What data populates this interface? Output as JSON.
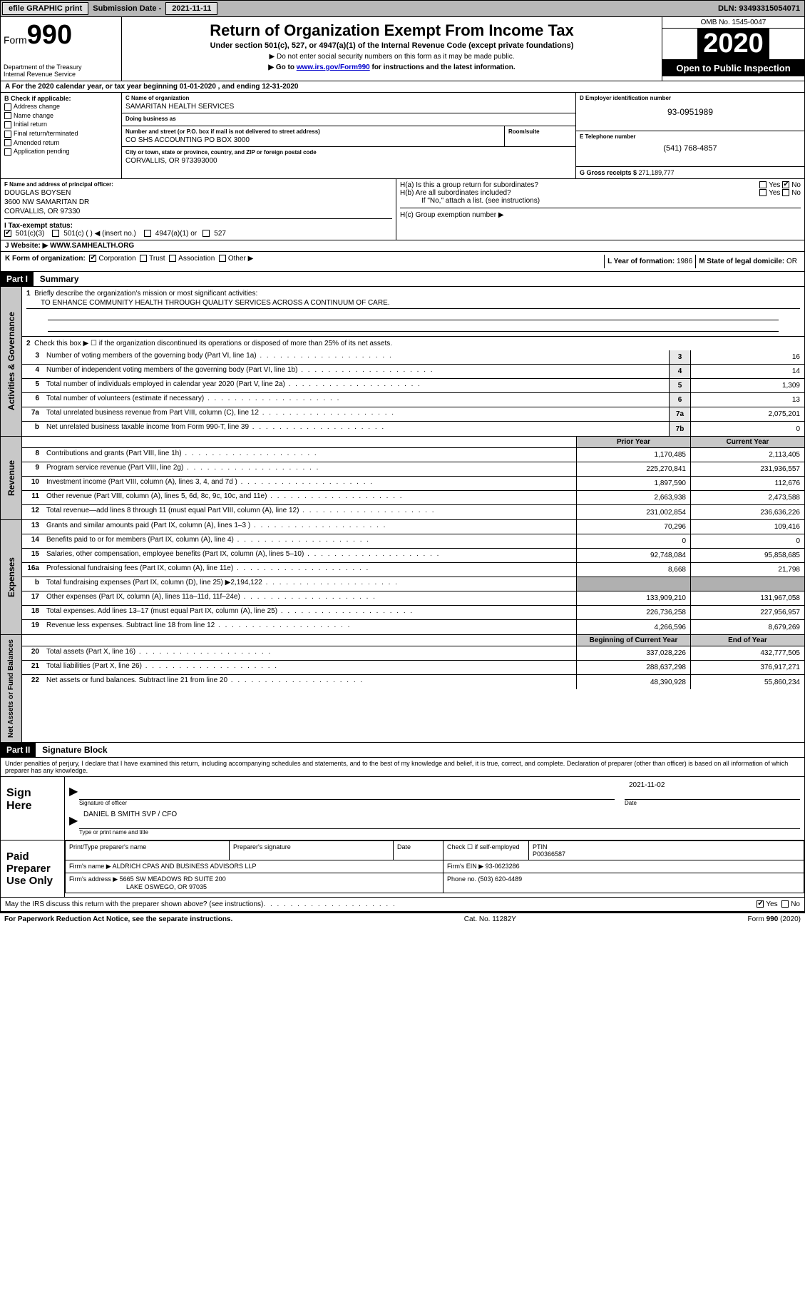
{
  "topbar": {
    "efile": "efile GRAPHIC print",
    "submission_label": "Submission Date - ",
    "submission_date": "2021-11-11",
    "dln_label": "DLN: ",
    "dln": "93493315054071"
  },
  "header": {
    "form_label": "Form",
    "form_number": "990",
    "dept": "Department of the Treasury\nInternal Revenue Service",
    "title": "Return of Organization Exempt From Income Tax",
    "subtitle": "Under section 501(c), 527, or 4947(a)(1) of the Internal Revenue Code (except private foundations)",
    "note1": "▶ Do not enter social security numbers on this form as it may be made public.",
    "note2_pre": "▶ Go to ",
    "note2_link": "www.irs.gov/Form990",
    "note2_post": " for instructions and the latest information.",
    "omb": "OMB No. 1545-0047",
    "year": "2020",
    "otp": "Open to Public Inspection"
  },
  "rowA": "A For the 2020 calendar year, or tax year beginning 01-01-2020    , and ending 12-31-2020",
  "checkboxes": {
    "header": "B Check if applicable:",
    "items": [
      "Address change",
      "Name change",
      "Initial return",
      "Final return/terminated",
      "Amended return",
      "Application pending"
    ]
  },
  "org": {
    "c_label": "C Name of organization",
    "name": "SAMARITAN HEALTH SERVICES",
    "dba_label": "Doing business as",
    "dba": "",
    "addr_label": "Number and street (or P.O. box if mail is not delivered to street address)",
    "room_label": "Room/suite",
    "addr": "CO SHS ACCOUNTING PO BOX 3000",
    "city_label": "City or town, state or province, country, and ZIP or foreign postal code",
    "city": "CORVALLIS, OR  973393000"
  },
  "right_info": {
    "d_label": "D Employer identification number",
    "ein": "93-0951989",
    "e_label": "E Telephone number",
    "phone": "(541) 768-4857",
    "g_label": "G Gross receipts $ ",
    "gross": "271,189,777"
  },
  "officer": {
    "f_label": "F  Name and address of principal officer:",
    "name": "DOUGLAS BOYSEN",
    "addr1": "3600 NW SAMARITAN DR",
    "addr2": "CORVALLIS, OR  97330"
  },
  "h_section": {
    "ha": "H(a)  Is this a group return for subordinates?",
    "hb": "H(b)  Are all subordinates included?",
    "hb_note": "If \"No,\" attach a list. (see instructions)",
    "hc": "H(c)  Group exemption number ▶"
  },
  "tax_exempt": {
    "label": "I  Tax-exempt status:",
    "opt1": "501(c)(3)",
    "opt2": "501(c) (  ) ◀ (insert no.)",
    "opt3": "4947(a)(1) or",
    "opt4": "527"
  },
  "website": {
    "label": "J  Website: ▶ ",
    "url": "WWW.SAMHEALTH.ORG"
  },
  "k_row": {
    "label": "K Form of organization:",
    "opts": [
      "Corporation",
      "Trust",
      "Association",
      "Other ▶"
    ],
    "l_label": "L Year of formation: ",
    "l_val": "1986",
    "m_label": "M State of legal domicile: ",
    "m_val": "OR"
  },
  "part1": {
    "header": "Part I",
    "title": "Summary"
  },
  "governance": {
    "vlabel": "Activities & Governance",
    "line1": "Briefly describe the organization's mission or most significant activities:",
    "mission": "TO ENHANCE COMMUNITY HEALTH THROUGH QUALITY SERVICES ACROSS A CONTINUUM OF CARE.",
    "line2": "Check this box ▶ ☐  if the organization discontinued its operations or disposed of more than 25% of its net assets.",
    "lines": [
      {
        "n": "3",
        "t": "Number of voting members of the governing body (Part VI, line 1a)",
        "box": "3",
        "v": "16"
      },
      {
        "n": "4",
        "t": "Number of independent voting members of the governing body (Part VI, line 1b)",
        "box": "4",
        "v": "14"
      },
      {
        "n": "5",
        "t": "Total number of individuals employed in calendar year 2020 (Part V, line 2a)",
        "box": "5",
        "v": "1,309"
      },
      {
        "n": "6",
        "t": "Total number of volunteers (estimate if necessary)",
        "box": "6",
        "v": "13"
      },
      {
        "n": "7a",
        "t": "Total unrelated business revenue from Part VIII, column (C), line 12",
        "box": "7a",
        "v": "2,075,201"
      },
      {
        "n": "b",
        "t": "Net unrelated business taxable income from Form 990-T, line 39",
        "box": "7b",
        "v": "0"
      }
    ]
  },
  "twoColHeader": {
    "prior": "Prior Year",
    "current": "Current Year"
  },
  "revenue": {
    "vlabel": "Revenue",
    "lines": [
      {
        "n": "8",
        "t": "Contributions and grants (Part VIII, line 1h)",
        "p": "1,170,485",
        "c": "2,113,405"
      },
      {
        "n": "9",
        "t": "Program service revenue (Part VIII, line 2g)",
        "p": "225,270,841",
        "c": "231,936,557"
      },
      {
        "n": "10",
        "t": "Investment income (Part VIII, column (A), lines 3, 4, and 7d )",
        "p": "1,897,590",
        "c": "112,676"
      },
      {
        "n": "11",
        "t": "Other revenue (Part VIII, column (A), lines 5, 6d, 8c, 9c, 10c, and 11e)",
        "p": "2,663,938",
        "c": "2,473,588"
      },
      {
        "n": "12",
        "t": "Total revenue—add lines 8 through 11 (must equal Part VIII, column (A), line 12)",
        "p": "231,002,854",
        "c": "236,636,226"
      }
    ]
  },
  "expenses": {
    "vlabel": "Expenses",
    "lines": [
      {
        "n": "13",
        "t": "Grants and similar amounts paid (Part IX, column (A), lines 1–3 )",
        "p": "70,296",
        "c": "109,416"
      },
      {
        "n": "14",
        "t": "Benefits paid to or for members (Part IX, column (A), line 4)",
        "p": "0",
        "c": "0"
      },
      {
        "n": "15",
        "t": "Salaries, other compensation, employee benefits (Part IX, column (A), lines 5–10)",
        "p": "92,748,084",
        "c": "95,858,685"
      },
      {
        "n": "16a",
        "t": "Professional fundraising fees (Part IX, column (A), line 11e)",
        "p": "8,668",
        "c": "21,798"
      },
      {
        "n": "b",
        "t": "Total fundraising expenses (Part IX, column (D), line 25) ▶2,194,122",
        "p": "SHADED",
        "c": "SHADED"
      },
      {
        "n": "17",
        "t": "Other expenses (Part IX, column (A), lines 11a–11d, 11f–24e)",
        "p": "133,909,210",
        "c": "131,967,058"
      },
      {
        "n": "18",
        "t": "Total expenses. Add lines 13–17 (must equal Part IX, column (A), line 25)",
        "p": "226,736,258",
        "c": "227,956,957"
      },
      {
        "n": "19",
        "t": "Revenue less expenses. Subtract line 18 from line 12",
        "p": "4,266,596",
        "c": "8,679,269"
      }
    ]
  },
  "netassets": {
    "vlabel": "Net Assets or Fund Balances",
    "header": {
      "prior": "Beginning of Current Year",
      "current": "End of Year"
    },
    "lines": [
      {
        "n": "20",
        "t": "Total assets (Part X, line 16)",
        "p": "337,028,226",
        "c": "432,777,505"
      },
      {
        "n": "21",
        "t": "Total liabilities (Part X, line 26)",
        "p": "288,637,298",
        "c": "376,917,271"
      },
      {
        "n": "22",
        "t": "Net assets or fund balances. Subtract line 21 from line 20",
        "p": "48,390,928",
        "c": "55,860,234"
      }
    ]
  },
  "part2": {
    "header": "Part II",
    "title": "Signature Block"
  },
  "perjury": "Under penalties of perjury, I declare that I have examined this return, including accompanying schedules and statements, and to the best of my knowledge and belief, it is true, correct, and complete. Declaration of preparer (other than officer) is based on all information of which preparer has any knowledge.",
  "sign": {
    "left": "Sign Here",
    "sig_caption": "Signature of officer",
    "date_caption": "Date",
    "date": "2021-11-02",
    "name": "DANIEL B SMITH SVP / CFO",
    "name_caption": "Type or print name and title"
  },
  "paid": {
    "left": "Paid Preparer Use Only",
    "h1": "Print/Type preparer's name",
    "h2": "Preparer's signature",
    "h3": "Date",
    "h4_a": "Check ☐ if self-employed",
    "h4_b": "PTIN",
    "ptin": "P00366587",
    "firm_label": "Firm's name    ▶ ",
    "firm": "ALDRICH CPAS AND BUSINESS ADVISORS LLP",
    "firm_ein_label": "Firm's EIN ▶ ",
    "firm_ein": "93-0623286",
    "addr_label": "Firm's address ▶ ",
    "addr1": "5665 SW MEADOWS RD SUITE 200",
    "addr2": "LAKE OSWEGO, OR  97035",
    "phone_label": "Phone no. ",
    "phone": "(503) 620-4489"
  },
  "irs_discuss": "May the IRS discuss this return with the preparer shown above? (see instructions)",
  "yes": "Yes",
  "no": "No",
  "footer": {
    "left": "For Paperwork Reduction Act Notice, see the separate instructions.",
    "mid": "Cat. No. 11282Y",
    "right": "Form 990 (2020)"
  }
}
